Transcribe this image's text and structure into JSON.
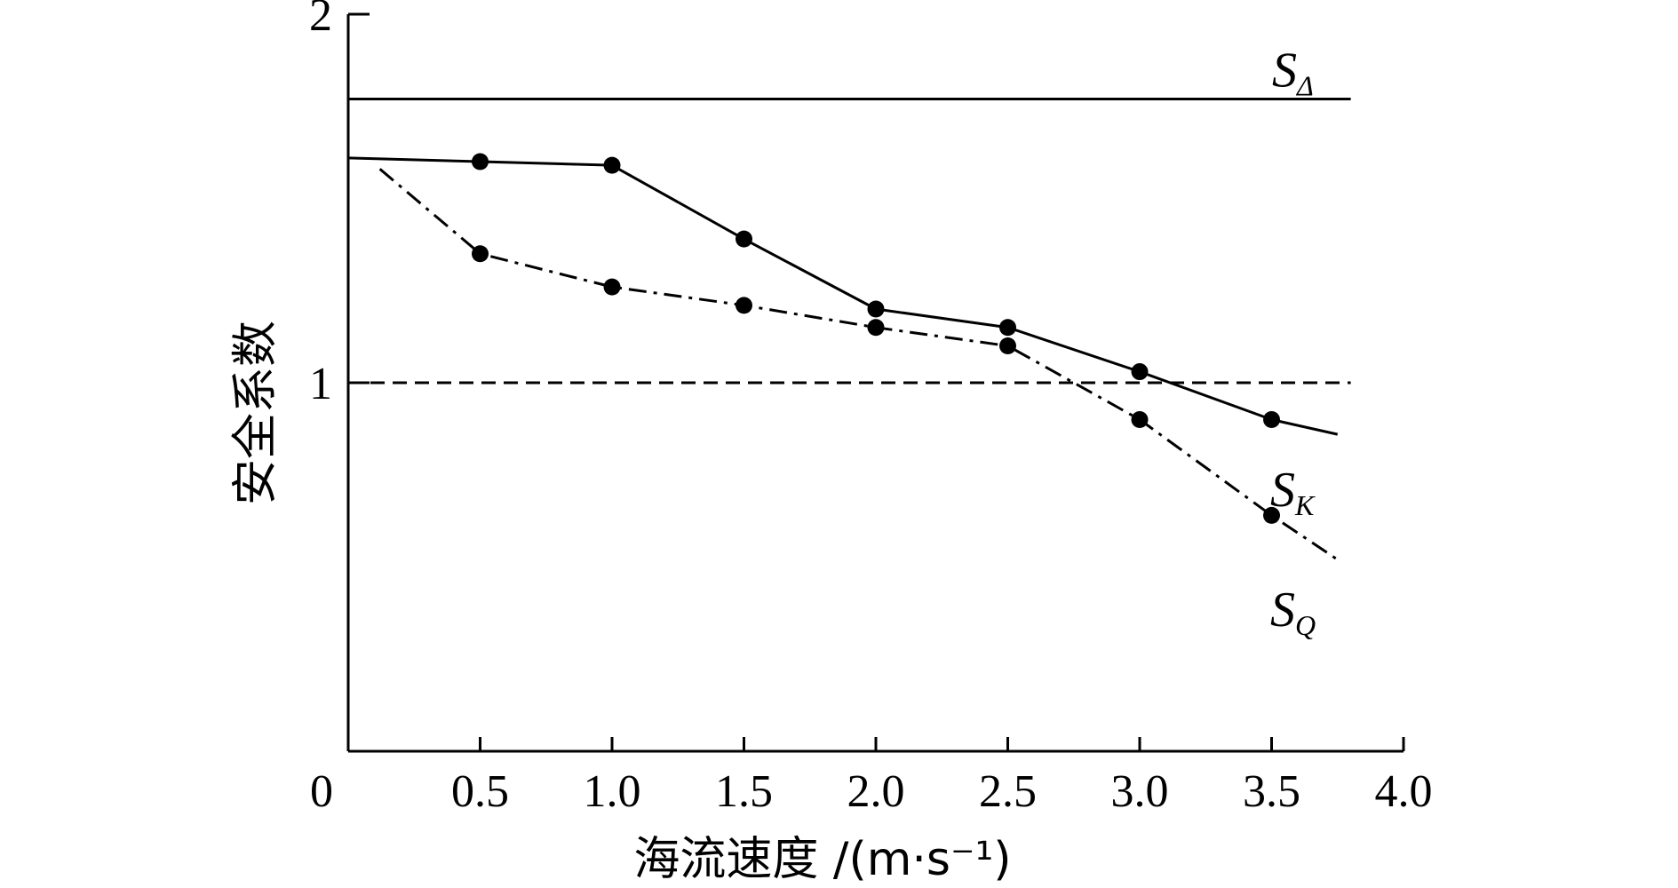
{
  "chart_data": {
    "type": "line",
    "xlabel": "海流速度 /(m·s⁻¹)",
    "ylabel": "安全系数",
    "xlim": [
      0,
      4.0
    ],
    "ylim": [
      0,
      2
    ],
    "x_ticks": [
      "0",
      "0.5",
      "1.0",
      "1.5",
      "2.0",
      "2.5",
      "3.0",
      "3.5",
      "4.0"
    ],
    "y_ticks": [
      "1",
      "2"
    ],
    "grid": false,
    "legend": "none",
    "reference_lines": [
      {
        "name": "S_Δ",
        "label_main": "S",
        "label_sub": "Δ",
        "y": 1.77,
        "x_range": [
          0,
          3.8
        ],
        "style": "solid"
      },
      {
        "y": 1.0,
        "x_range": [
          0,
          3.8
        ],
        "style": "dashed"
      }
    ],
    "series": [
      {
        "name": "S_K",
        "label_main": "S",
        "label_sub": "K",
        "style": "solid",
        "x": [
          0,
          0.5,
          1.0,
          1.5,
          2.0,
          2.5,
          3.0,
          3.5,
          3.75
        ],
        "y": [
          1.61,
          1.6,
          1.59,
          1.39,
          1.2,
          1.15,
          1.03,
          0.9,
          0.86
        ],
        "markers": [
          false,
          true,
          true,
          true,
          true,
          true,
          true,
          true,
          false
        ]
      },
      {
        "name": "S_Q",
        "label_main": "S",
        "label_sub": "Q",
        "style": "dashdot",
        "x": [
          0.12,
          0.5,
          1.0,
          1.5,
          2.0,
          2.5,
          3.0,
          3.5,
          3.75
        ],
        "y": [
          1.58,
          1.35,
          1.26,
          1.21,
          1.15,
          1.1,
          0.9,
          0.64,
          0.52
        ],
        "markers": [
          false,
          true,
          true,
          true,
          true,
          true,
          true,
          true,
          false
        ]
      }
    ]
  }
}
